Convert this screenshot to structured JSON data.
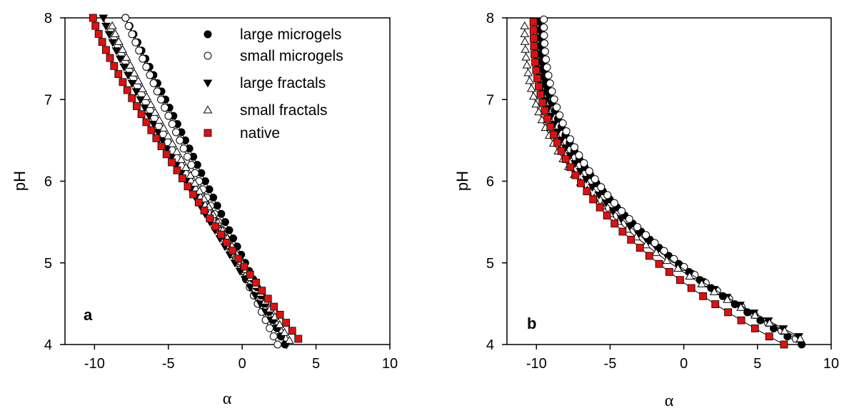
{
  "chart_data": [
    {
      "type": "scatter",
      "panel_label": "a",
      "xlabel": "α",
      "ylabel": "pH",
      "xlim": [
        -12,
        10
      ],
      "ylim": [
        4,
        8
      ],
      "xticks": [
        -10,
        -5,
        0,
        5,
        10
      ],
      "yticks": [
        4,
        5,
        6,
        7,
        8
      ],
      "legend_position": "top-right",
      "series": [
        {
          "name": "large microgels",
          "marker": "filled-circle",
          "color": "#000000",
          "start": [
            -7.9,
            8.0
          ],
          "end": [
            2.9,
            4.0
          ],
          "exponent": 1.0
        },
        {
          "name": "small microgels",
          "marker": "open-circle",
          "color": "#000000",
          "start": [
            -7.9,
            8.0
          ],
          "end": [
            2.4,
            4.0
          ],
          "exponent": 1.05
        },
        {
          "name": "large fractals",
          "marker": "filled-triangle-down",
          "color": "#000000",
          "start": [
            -9.4,
            8.0
          ],
          "end": [
            3.0,
            4.0
          ],
          "exponent": 1.15
        },
        {
          "name": "small fractals",
          "marker": "open-triangle-up",
          "color": "#000000",
          "start": [
            -8.8,
            7.9
          ],
          "end": [
            3.2,
            4.05
          ],
          "exponent": 1.1
        },
        {
          "name": "native",
          "marker": "filled-square",
          "color": "#e01010",
          "start": [
            -10.1,
            8.0
          ],
          "end": [
            3.8,
            4.07
          ],
          "exponent": 1.2
        }
      ]
    },
    {
      "type": "scatter",
      "panel_label": "b",
      "xlabel": "α",
      "ylabel": "pH",
      "xlim": [
        -12,
        10
      ],
      "ylim": [
        4,
        8
      ],
      "xticks": [
        -10,
        -5,
        0,
        5,
        10
      ],
      "yticks": [
        4,
        5,
        6,
        7,
        8
      ],
      "series": [
        {
          "name": "large microgels",
          "marker": "filled-circle",
          "color": "#000000",
          "start": [
            -9.8,
            7.95
          ],
          "end": [
            8.0,
            4.0
          ],
          "exponent": 2.2
        },
        {
          "name": "small microgels",
          "marker": "open-circle",
          "color": "#000000",
          "start": [
            -9.5,
            7.98
          ],
          "end": [
            7.6,
            4.07
          ],
          "exponent": 2.3
        },
        {
          "name": "large fractals",
          "marker": "filled-triangle-down",
          "color": "#000000",
          "start": [
            -10.0,
            7.95
          ],
          "end": [
            7.8,
            4.1
          ],
          "exponent": 2.4
        },
        {
          "name": "small fractals",
          "marker": "open-triangle-up",
          "color": "#000000",
          "start": [
            -10.8,
            7.9
          ],
          "end": [
            7.9,
            4.07
          ],
          "exponent": 2.3
        },
        {
          "name": "native",
          "marker": "filled-square",
          "color": "#e01010",
          "start": [
            -10.2,
            7.95
          ],
          "end": [
            6.8,
            4.0
          ],
          "exponent": 2.4
        }
      ]
    }
  ]
}
